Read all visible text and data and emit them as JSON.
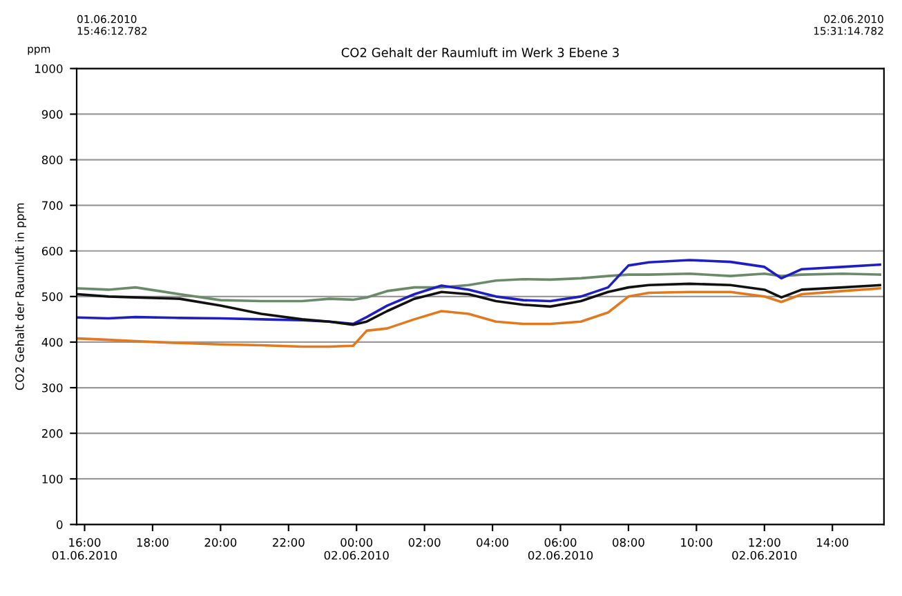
{
  "chart_data": {
    "type": "line",
    "title": "CO2 Gehalt der Raumluft im Werk 3 Ebene 3",
    "ylabel": "CO2 Gehalt der Raumluft in ppm",
    "annotations": [
      "01.06.2010\n15:46:12.782",
      "02.06.2010\n15:31:14.782",
      "ppm"
    ],
    "x": [
      "2010-06-01T15:48",
      "2010-06-01T16:42",
      "2010-06-01T17:30",
      "2010-06-01T18:48",
      "2010-06-01T20:00",
      "2010-06-01T21:12",
      "2010-06-01T22:24",
      "2010-06-01T23:12",
      "2010-06-01T23:54",
      "2010-06-02T00:18",
      "2010-06-02T00:54",
      "2010-06-02T01:42",
      "2010-06-02T02:30",
      "2010-06-02T03:18",
      "2010-06-02T04:06",
      "2010-06-02T04:54",
      "2010-06-02T05:42",
      "2010-06-02T06:36",
      "2010-06-02T07:24",
      "2010-06-02T08:00",
      "2010-06-02T08:36",
      "2010-06-02T09:48",
      "2010-06-02T11:00",
      "2010-06-02T12:00",
      "2010-06-02T12:30",
      "2010-06-02T13:06",
      "2010-06-02T14:18",
      "2010-06-02T15:24"
    ],
    "series": [
      {
        "color": "#6a8a6a",
        "values": [
          518,
          515,
          520,
          505,
          492,
          490,
          490,
          495,
          493,
          498,
          512,
          520,
          520,
          525,
          535,
          538,
          537,
          540,
          545,
          548,
          548,
          550,
          545,
          550,
          545,
          548,
          550,
          548
        ]
      },
      {
        "color": "#1f1fbf",
        "values": [
          454,
          452,
          455,
          453,
          452,
          450,
          448,
          445,
          440,
          455,
          480,
          505,
          524,
          515,
          500,
          492,
          490,
          500,
          520,
          568,
          575,
          580,
          576,
          565,
          540,
          560,
          565,
          570
        ]
      },
      {
        "color": "#111111",
        "values": [
          505,
          500,
          498,
          495,
          480,
          462,
          450,
          445,
          438,
          445,
          468,
          495,
          510,
          505,
          490,
          482,
          478,
          490,
          510,
          520,
          525,
          528,
          525,
          515,
          498,
          515,
          520,
          525
        ]
      },
      {
        "color": "#e07a20",
        "values": [
          408,
          405,
          402,
          398,
          395,
          393,
          390,
          390,
          392,
          425,
          430,
          450,
          468,
          462,
          445,
          440,
          440,
          445,
          465,
          500,
          508,
          510,
          510,
          500,
          488,
          505,
          512,
          518
        ]
      }
    ],
    "xlim": [
      "2010-06-01T15:46",
      "2010-06-02T15:31"
    ],
    "xticks": [
      {
        "value": "2010-06-01T16:00",
        "label": "16:00\n01.06.2010"
      },
      {
        "value": "2010-06-01T18:00",
        "label": "18:00"
      },
      {
        "value": "2010-06-01T20:00",
        "label": "20:00"
      },
      {
        "value": "2010-06-01T22:00",
        "label": "22:00"
      },
      {
        "value": "2010-06-02T00:00",
        "label": "00:00\n02.06.2010"
      },
      {
        "value": "2010-06-02T02:00",
        "label": "02:00"
      },
      {
        "value": "2010-06-02T04:00",
        "label": "04:00"
      },
      {
        "value": "2010-06-02T06:00",
        "label": "06:00\n02.06.2010"
      },
      {
        "value": "2010-06-02T08:00",
        "label": "08:00"
      },
      {
        "value": "2010-06-02T10:00",
        "label": "10:00"
      },
      {
        "value": "2010-06-02T12:00",
        "label": "12:00\n02.06.2010"
      },
      {
        "value": "2010-06-02T14:00",
        "label": "14:00"
      }
    ],
    "ylim": [
      0,
      1000
    ],
    "yticks": [
      0,
      100,
      200,
      300,
      400,
      500,
      600,
      700,
      800,
      900,
      1000
    ],
    "grid": "y",
    "legend": false,
    "marker": "none",
    "line_style": "solid"
  }
}
